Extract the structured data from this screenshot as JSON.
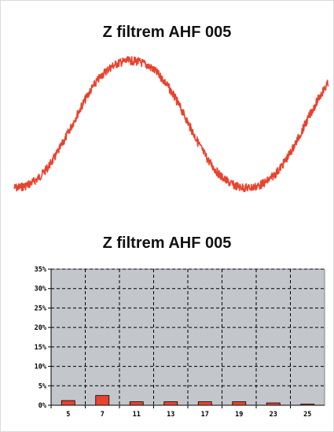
{
  "charts": {
    "waveform_title": "Z filtrem AHF 005",
    "spectrum_title": "Z filtrem AHF 005"
  },
  "colors": {
    "wave": "#e8432e",
    "bar": "#e8432e",
    "plot_bg": "#c3c6cb",
    "grid": "#000000"
  },
  "chart_data": [
    {
      "type": "line",
      "title": "Z filtrem AHF 005",
      "xlabel": "",
      "ylabel": "",
      "description_values": {
        "cycles_shown": 1.35,
        "amplitude": 1.0,
        "noise": 0.04
      },
      "grid": false,
      "legend": "none"
    },
    {
      "type": "bar",
      "title": "Z filtrem AHF 005",
      "categories": [
        "5",
        "7",
        "11",
        "13",
        "17",
        "19",
        "23",
        "25"
      ],
      "values": [
        1.2,
        2.5,
        0.9,
        0.9,
        0.9,
        0.9,
        0.6,
        0.3
      ],
      "ylim": [
        0,
        35
      ],
      "yticks": [
        "35%",
        "30%",
        "25%",
        "20%",
        "15%",
        "10%",
        "5%",
        "0%"
      ],
      "grid": true,
      "legend": "none"
    }
  ]
}
